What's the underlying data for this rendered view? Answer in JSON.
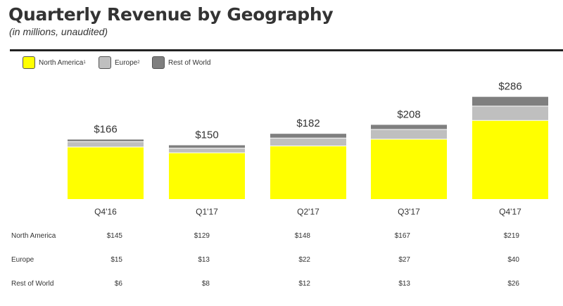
{
  "chart_data": {
    "type": "bar",
    "stacked": true,
    "title": "Quarterly Revenue by Geography",
    "subtitle": "(in millions, unaudited)",
    "categories": [
      "Q4'16",
      "Q1'17",
      "Q2'17",
      "Q3'17",
      "Q4'17"
    ],
    "totals": [
      "$166",
      "$150",
      "$182",
      "$208",
      "$286"
    ],
    "series": [
      {
        "name": "North America",
        "sup": "1",
        "color": "#ffff00",
        "values": [
          145,
          129,
          148,
          167,
          219
        ],
        "labels": [
          "$145",
          "$129",
          "$148",
          "$167",
          "$219"
        ]
      },
      {
        "name": "Europe",
        "sup": "2",
        "color": "#bfbfbf",
        "values": [
          15,
          13,
          22,
          27,
          40
        ],
        "labels": [
          "$15",
          "$13",
          "$22",
          "$27",
          "$40"
        ]
      },
      {
        "name": "Rest of World",
        "sup": "",
        "color": "#7f7f7f",
        "values": [
          6,
          8,
          12,
          13,
          26
        ],
        "labels": [
          "$6",
          "$8",
          "$12",
          "$13",
          "$26"
        ]
      }
    ],
    "legend_position": "top-left",
    "grid": false
  }
}
